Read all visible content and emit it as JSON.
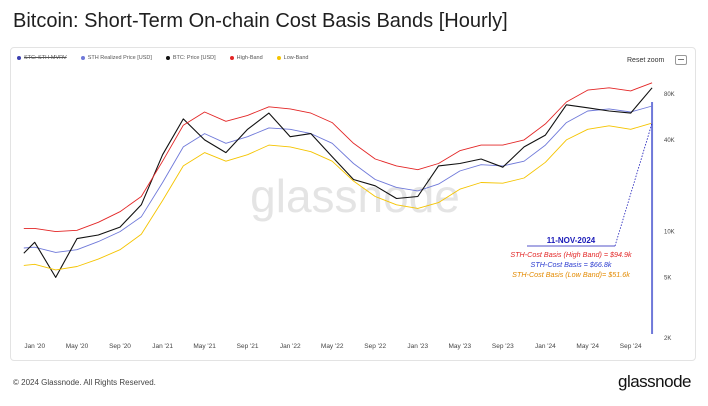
{
  "title": "Bitcoin: Short-Term On-chain Cost Basis Bands [Hourly]",
  "legend": [
    {
      "name": "STC: STH-MVRV",
      "color": "#3b3fb0",
      "disabled": true
    },
    {
      "name": "STH Realized Price [USD]",
      "color": "#6f79d9"
    },
    {
      "name": "BTC: Price [USD]",
      "color": "#111111"
    },
    {
      "name": "High-Band",
      "color": "#e32626"
    },
    {
      "name": "Low-Band",
      "color": "#f5c400"
    }
  ],
  "reset_zoom": "Reset zoom",
  "watermark": "glassnode",
  "annotation": {
    "date": "11-NOV-2024",
    "high": "STH-Cost Basis (High Band) = $94.9k",
    "mid": "STH-Cost Basis = $66.8k",
    "low": "STH-Cost Basis  (Low Band)= $51.6k",
    "colors": {
      "date": "#1a1ab8",
      "high": "#e32626",
      "mid": "#2a3acf",
      "low": "#e38a00"
    }
  },
  "footer": {
    "copyright": "© 2024 Glassnode. All Rights Reserved.",
    "brand": "glassnode"
  },
  "chart_data": {
    "type": "line",
    "x_tick_labels": [
      "Jan '20",
      "May '20",
      "Sep '20",
      "Jan '21",
      "May '21",
      "Sep '21",
      "Jan '22",
      "May '22",
      "Sep '22",
      "Jan '23",
      "May '23",
      "Sep '23",
      "Jan '24",
      "May '24",
      "Sep '24"
    ],
    "y_tick_labels": [
      "2K",
      "5K",
      "10K",
      "40K",
      "80K"
    ],
    "y_scale": "log",
    "ylim": [
      2000,
      130000
    ],
    "xlim": [
      "2019-11-20",
      "2024-11-18"
    ],
    "grid": false,
    "legend_position": "top-left",
    "x": [
      "2019-12",
      "2020-01",
      "2020-03",
      "2020-05",
      "2020-07",
      "2020-09",
      "2020-11",
      "2021-01",
      "2021-03",
      "2021-05",
      "2021-07",
      "2021-09",
      "2021-11",
      "2022-01",
      "2022-03",
      "2022-05",
      "2022-07",
      "2022-09",
      "2022-11",
      "2023-01",
      "2023-03",
      "2023-05",
      "2023-07",
      "2023-09",
      "2023-11",
      "2024-01",
      "2024-03",
      "2024-05",
      "2024-07",
      "2024-09",
      "2024-11"
    ],
    "series": [
      {
        "name": "STH Realized Price [USD]",
        "color": "#6f79d9",
        "values": [
          7800,
          7900,
          7300,
          7600,
          8600,
          10000,
          12500,
          21000,
          36000,
          44000,
          38000,
          42000,
          48000,
          47000,
          44000,
          38000,
          28000,
          22000,
          19500,
          18500,
          20500,
          25000,
          27500,
          27000,
          29000,
          37000,
          52000,
          62000,
          64000,
          61000,
          66800
        ]
      },
      {
        "name": "BTC: Price [USD]",
        "color": "#111111",
        "values": [
          7200,
          8500,
          5000,
          9000,
          9500,
          10700,
          15000,
          32000,
          55000,
          40000,
          33000,
          47000,
          60000,
          42000,
          44000,
          31000,
          22000,
          20000,
          16500,
          17000,
          27000,
          28000,
          30000,
          26500,
          36000,
          43000,
          68000,
          65000,
          62000,
          60000,
          88000
        ]
      },
      {
        "name": "High-Band",
        "color": "#e32626",
        "values": [
          10500,
          10500,
          10000,
          10200,
          11500,
          13500,
          17000,
          29000,
          50000,
          61000,
          53000,
          58000,
          66000,
          64000,
          60000,
          52000,
          38000,
          30000,
          27000,
          25500,
          28000,
          34000,
          37000,
          37000,
          40000,
          51000,
          71000,
          85000,
          88000,
          84000,
          94900
        ]
      },
      {
        "name": "Low-Band",
        "color": "#f5c400",
        "values": [
          6000,
          6100,
          5600,
          5900,
          6600,
          7600,
          9600,
          16000,
          27000,
          33000,
          29000,
          32000,
          37000,
          36000,
          33500,
          29000,
          21500,
          17000,
          15000,
          14200,
          15500,
          19000,
          21000,
          20800,
          22500,
          28500,
          40000,
          47000,
          49500,
          47000,
          51600
        ]
      }
    ]
  }
}
